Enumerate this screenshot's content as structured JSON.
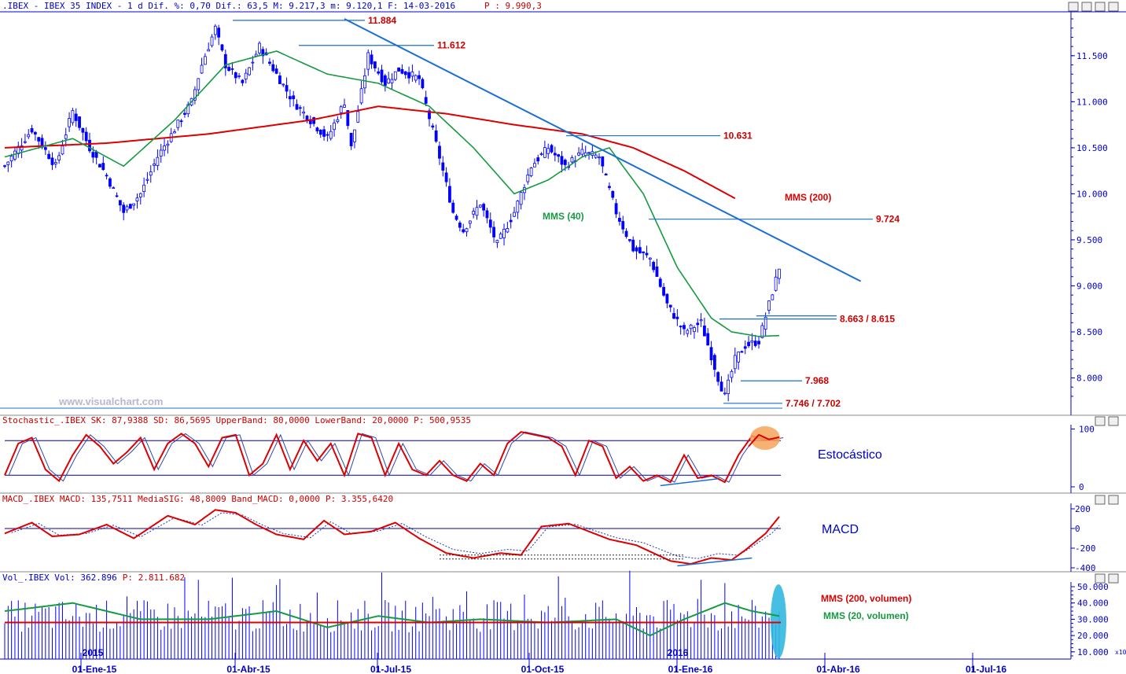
{
  "panels": {
    "price": {
      "header": ".IBEX - IBEX 35 INDEX -   1 d Dif. %: 0,70 Dif.: 63,5 M: 9.217,3 m: 9.120,1 F: 14-03-2016",
      "header_p": "P : 9.990,3",
      "watermark": "www.visualchart.com"
    },
    "stoch": {
      "header": "Stochastic_.IBEX SK: 87,9388 SD: 86,5695 UpperBand: 80,0000 LowerBand: 20,0000 P: 500,9535",
      "label": "Estocástico"
    },
    "macd": {
      "header_prefix": "MACD_.IBEX MACD: 135,7511 MediaSIG: 48,8009 Band_MACD: 0,0000",
      "header_p": "P: 3.355,6420",
      "label": "MACD"
    },
    "vol": {
      "header_prefix": "Vol_.IBEX Vol: 362.896",
      "header_p": "P: 2.811.682",
      "label_200": "MMS (200, volumen)",
      "label_20": "MMS (20, volumen)",
      "axis_badge": "x10"
    }
  },
  "colors": {
    "up_bar": "#0000ff",
    "mms200": "#dd0000",
    "mms40": "#159a40",
    "trendline": "#1a6fd0",
    "annot": "#cc0000",
    "axis": "#0000cc",
    "highlight_orange": "#f5a55a",
    "highlight_cyan": "#33b8e0"
  },
  "chart_data": {
    "type": "candlestick",
    "x_tick_labels": [
      "01-Ene-15",
      "01-Abr-15",
      "01-Jul-15",
      "01-Oct-15",
      "01-Ene-16",
      "01-Abr-16",
      "01-Jul-16"
    ],
    "year_labels": [
      "2015",
      "2016"
    ],
    "price_axis": {
      "ticks": [
        8000,
        8500,
        9000,
        9500,
        10000,
        10500,
        11000,
        11500
      ],
      "tick_labels": [
        "8.000",
        "8.500",
        "9.000",
        "9.500",
        "10.000",
        "10.500",
        "11.000",
        "11.500"
      ]
    },
    "price_path": [
      [
        0,
        10300
      ],
      [
        8,
        10700
      ],
      [
        15,
        10300
      ],
      [
        20,
        10900
      ],
      [
        25,
        10500
      ],
      [
        30,
        10200
      ],
      [
        35,
        9800
      ],
      [
        40,
        10000
      ],
      [
        45,
        10400
      ],
      [
        50,
        10700
      ],
      [
        55,
        11000
      ],
      [
        58,
        11400
      ],
      [
        62,
        11800
      ],
      [
        65,
        11400
      ],
      [
        70,
        11200
      ],
      [
        75,
        11600
      ],
      [
        80,
        11300
      ],
      [
        85,
        11000
      ],
      [
        90,
        10800
      ],
      [
        95,
        10600
      ],
      [
        100,
        11000
      ],
      [
        102,
        10500
      ],
      [
        107,
        11500
      ],
      [
        112,
        11200
      ],
      [
        116,
        11350
      ],
      [
        122,
        11250
      ],
      [
        128,
        10400
      ],
      [
        132,
        9800
      ],
      [
        135,
        9600
      ],
      [
        140,
        9900
      ],
      [
        145,
        9450
      ],
      [
        150,
        9800
      ],
      [
        155,
        10300
      ],
      [
        160,
        10500
      ],
      [
        165,
        10300
      ],
      [
        170,
        10450
      ],
      [
        175,
        10400
      ],
      [
        180,
        9800
      ],
      [
        185,
        9400
      ],
      [
        190,
        9300
      ],
      [
        195,
        8800
      ],
      [
        200,
        8500
      ],
      [
        205,
        8600
      ],
      [
        210,
        8000
      ],
      [
        212,
        7800
      ],
      [
        215,
        8200
      ],
      [
        218,
        8350
      ],
      [
        222,
        8400
      ],
      [
        225,
        8800
      ],
      [
        228,
        9200
      ]
    ],
    "mms200_path": [
      [
        0,
        10500
      ],
      [
        30,
        10550
      ],
      [
        60,
        10650
      ],
      [
        90,
        10800
      ],
      [
        110,
        10950
      ],
      [
        130,
        10870
      ],
      [
        150,
        10750
      ],
      [
        170,
        10650
      ],
      [
        185,
        10500
      ],
      [
        200,
        10250
      ],
      [
        215,
        9950
      ]
    ],
    "mms40_path": [
      [
        0,
        10400
      ],
      [
        20,
        10600
      ],
      [
        35,
        10300
      ],
      [
        50,
        10800
      ],
      [
        65,
        11400
      ],
      [
        80,
        11550
      ],
      [
        95,
        11300
      ],
      [
        110,
        11200
      ],
      [
        125,
        10950
      ],
      [
        138,
        10500
      ],
      [
        150,
        10000
      ],
      [
        160,
        10150
      ],
      [
        170,
        10400
      ],
      [
        178,
        10500
      ],
      [
        188,
        10000
      ],
      [
        198,
        9200
      ],
      [
        208,
        8650
      ],
      [
        214,
        8500
      ],
      [
        222,
        8450
      ],
      [
        228,
        8460
      ]
    ],
    "trendline": {
      "from": [
        100,
        11900
      ],
      "to": [
        252,
        9050
      ]
    },
    "levels": [
      {
        "value": 11884,
        "label": "11.884"
      },
      {
        "value": 11612,
        "label": "11.612"
      },
      {
        "value": 10631,
        "label": "10.631"
      },
      {
        "value": 9724,
        "label": "9.724"
      },
      {
        "value": 8640,
        "label": "8.663 / 8.615"
      },
      {
        "value": 7968,
        "label": "7.968"
      },
      {
        "value": 7724,
        "label": "7.746 / 7.702"
      }
    ],
    "series_labels": {
      "mms200": "MMS (200)",
      "mms40": "MMS (40)"
    },
    "stochastic": {
      "ticks": [
        0,
        100
      ],
      "tick_labels": [
        "0",
        "100"
      ],
      "upper_band": 80,
      "lower_band": 20,
      "sk_path": [
        [
          0,
          20
        ],
        [
          4,
          75
        ],
        [
          8,
          85
        ],
        [
          12,
          30
        ],
        [
          16,
          10
        ],
        [
          20,
          55
        ],
        [
          24,
          90
        ],
        [
          28,
          70
        ],
        [
          32,
          40
        ],
        [
          36,
          60
        ],
        [
          40,
          85
        ],
        [
          44,
          30
        ],
        [
          48,
          75
        ],
        [
          52,
          92
        ],
        [
          56,
          75
        ],
        [
          60,
          35
        ],
        [
          64,
          85
        ],
        [
          68,
          90
        ],
        [
          72,
          20
        ],
        [
          76,
          40
        ],
        [
          80,
          90
        ],
        [
          84,
          30
        ],
        [
          88,
          80
        ],
        [
          92,
          45
        ],
        [
          96,
          75
        ],
        [
          100,
          20
        ],
        [
          104,
          92
        ],
        [
          108,
          85
        ],
        [
          112,
          20
        ],
        [
          116,
          75
        ],
        [
          120,
          30
        ],
        [
          124,
          20
        ],
        [
          128,
          45
        ],
        [
          132,
          20
        ],
        [
          136,
          10
        ],
        [
          140,
          40
        ],
        [
          144,
          20
        ],
        [
          148,
          75
        ],
        [
          152,
          95
        ],
        [
          156,
          90
        ],
        [
          160,
          85
        ],
        [
          164,
          70
        ],
        [
          168,
          20
        ],
        [
          172,
          80
        ],
        [
          176,
          70
        ],
        [
          180,
          15
        ],
        [
          184,
          35
        ],
        [
          188,
          10
        ],
        [
          192,
          20
        ],
        [
          196,
          8
        ],
        [
          200,
          55
        ],
        [
          204,
          15
        ],
        [
          208,
          20
        ],
        [
          212,
          8
        ],
        [
          216,
          55
        ],
        [
          220,
          88
        ],
        [
          224,
          80
        ],
        [
          228,
          85
        ]
      ],
      "divergence_line": {
        "from": [
          193,
          2
        ],
        "to": [
          210,
          14
        ]
      }
    },
    "macd": {
      "ticks": [
        -400,
        -200,
        0,
        200
      ],
      "tick_labels": [
        "-400",
        "-200",
        "0",
        "200"
      ],
      "macd_path": [
        [
          0,
          -50
        ],
        [
          8,
          60
        ],
        [
          14,
          -80
        ],
        [
          22,
          -60
        ],
        [
          30,
          40
        ],
        [
          38,
          -100
        ],
        [
          48,
          130
        ],
        [
          56,
          40
        ],
        [
          62,
          190
        ],
        [
          68,
          160
        ],
        [
          74,
          40
        ],
        [
          80,
          -60
        ],
        [
          88,
          -110
        ],
        [
          94,
          80
        ],
        [
          100,
          -60
        ],
        [
          108,
          -30
        ],
        [
          115,
          60
        ],
        [
          122,
          -100
        ],
        [
          130,
          -250
        ],
        [
          138,
          -300
        ],
        [
          146,
          -250
        ],
        [
          152,
          -270
        ],
        [
          158,
          20
        ],
        [
          166,
          50
        ],
        [
          172,
          -30
        ],
        [
          178,
          -110
        ],
        [
          186,
          -170
        ],
        [
          196,
          -330
        ],
        [
          202,
          -360
        ],
        [
          208,
          -300
        ],
        [
          214,
          -320
        ],
        [
          218,
          -220
        ],
        [
          224,
          -50
        ],
        [
          228,
          120
        ]
      ],
      "support_lines": [
        {
          "from": [
            128,
            -270
          ],
          "to": [
            200,
            -270
          ]
        },
        {
          "from": [
            128,
            -310
          ],
          "to": [
            200,
            -310
          ]
        }
      ],
      "divergence_line": {
        "from": [
          198,
          -380
        ],
        "to": [
          220,
          -300
        ]
      }
    },
    "volume": {
      "ticks": [
        10,
        20,
        30,
        40,
        50
      ],
      "tick_labels": [
        "10.000",
        "20.000",
        "30.000",
        "40.000",
        "50.000"
      ],
      "mms200": 28,
      "mms20_path": [
        [
          0,
          35
        ],
        [
          20,
          40
        ],
        [
          40,
          30
        ],
        [
          60,
          30
        ],
        [
          80,
          35
        ],
        [
          95,
          25
        ],
        [
          110,
          32
        ],
        [
          125,
          28
        ],
        [
          140,
          30
        ],
        [
          160,
          28
        ],
        [
          180,
          30
        ],
        [
          190,
          20
        ],
        [
          200,
          30
        ],
        [
          212,
          40
        ],
        [
          220,
          35
        ],
        [
          228,
          32
        ]
      ]
    }
  }
}
